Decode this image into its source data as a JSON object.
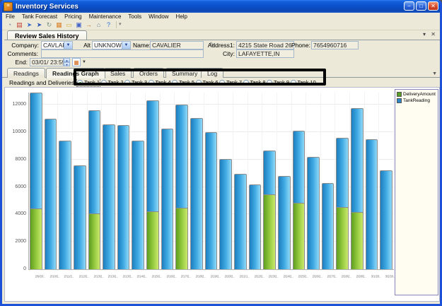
{
  "window": {
    "title": "Inventory Services",
    "controls": {
      "minimize": "−",
      "maximize": "□",
      "close": "✕"
    }
  },
  "menu": {
    "items": [
      "File",
      "Tank Forecast",
      "Pricing",
      "Maintenance",
      "Tools",
      "Window",
      "Help"
    ]
  },
  "toolbar": {
    "icons": [
      {
        "name": "gauge-icon",
        "glyph": "◔",
        "color": "#7d8da5"
      },
      {
        "name": "report-icon",
        "glyph": "▤",
        "color": "#c23a2e"
      },
      {
        "name": "edit-pointer-icon",
        "glyph": "➤",
        "color": "#3a6cd0"
      },
      {
        "name": "pointer-icon",
        "glyph": "➤",
        "color": "#2a54b0"
      },
      {
        "name": "refresh-icon",
        "glyph": "↻",
        "color": "#7a9183"
      },
      {
        "name": "table-icon",
        "glyph": "▦",
        "color": "#d9822b"
      },
      {
        "name": "folder-open-icon",
        "glyph": "▭",
        "color": "#d8b23c"
      },
      {
        "name": "save-icon",
        "glyph": "▣",
        "color": "#4462c8"
      },
      {
        "name": "export-icon",
        "glyph": "→",
        "color": "#c07020"
      },
      {
        "name": "exit-icon",
        "glyph": "⌂",
        "color": "#6e82a0"
      },
      {
        "name": "help-icon",
        "glyph": "?",
        "color": "#2a6ed8"
      }
    ],
    "overflow_glyph": "▾"
  },
  "review_panel": {
    "tab_label": "Review Sales History",
    "collapse_glyph": "▾",
    "close_glyph": "✕"
  },
  "form": {
    "company_label": "Company:",
    "company_value": "CAVLAF",
    "altid_label": "Alt ID:",
    "altid_value": "UNKNOWN",
    "name_label": "Name:",
    "name_value": "CAVALIER",
    "address_label": "Address1:",
    "address_value": "4215 State Road 26 E",
    "phone_label": "Phone:",
    "phone_value": "7654960716",
    "comments_label": "Comments:",
    "comments_value": "",
    "city_label": "City:",
    "city_value": "LAFAYETTE,IN",
    "end_label": "End:",
    "end_date": "03/01/",
    "end_time": "23:59",
    "combo_arrow": "▼",
    "spin_up": "▲",
    "spin_down": "▼",
    "calendar_glyph": "▦"
  },
  "tabs": {
    "labels": [
      "Readings",
      "Readings Graph",
      "Sales",
      "Orders",
      "Summary",
      "Log"
    ],
    "active": "Readings Graph"
  },
  "subheader": {
    "title": "Readings and Deliveries",
    "tanks": [
      "Tank 1",
      "Tank 2",
      "Tank 3",
      "Tank 4",
      "Tank 5",
      "Tank 6",
      "Tank 7",
      "Tank 8",
      "Tank 9",
      "Tank 10"
    ],
    "selected_tank": "Tank 1",
    "chevron_glyph": "▼"
  },
  "chart_data": {
    "type": "bar",
    "title": "Readings and Deliveries",
    "categories": [
      "2/9/20..",
      "2/10/2..",
      "2/11/2..",
      "2/12/2..",
      "2/13/2..",
      "2/13/2..",
      "2/13/2..",
      "2/14/2..",
      "2/15/2..",
      "2/16/2..",
      "2/17/2..",
      "2/18/2..",
      "2/19/2..",
      "2/20/2..",
      "2/21/1..",
      "2/22/2..",
      "2/23/2..",
      "2/24/2..",
      "2/25/2..",
      "2/26/2..",
      "2/27/2..",
      "2/28/2..",
      "2/28/2..",
      "3/1/20..",
      "3/2/20.."
    ],
    "series": [
      {
        "name": "TankReading",
        "color": "#2d85c5",
        "values": [
          12950,
          11000,
          9400,
          7600,
          11600,
          10550,
          10500,
          9400,
          12330,
          10250,
          12000,
          11050,
          10000,
          8050,
          6970,
          6200,
          8650,
          6800,
          10100,
          8170,
          6280,
          9580,
          11750,
          9500,
          7220
        ]
      },
      {
        "name": "DeliveryAmount",
        "color": "#5a9e28",
        "values": [
          4450,
          null,
          null,
          null,
          4080,
          null,
          null,
          null,
          4250,
          null,
          4470,
          null,
          null,
          null,
          null,
          null,
          5450,
          null,
          4870,
          null,
          null,
          4560,
          4180,
          null,
          null
        ]
      }
    ],
    "ylim": [
      0,
      13400
    ],
    "yticks": [
      0,
      2000,
      4000,
      6000,
      8000,
      10000,
      12000
    ],
    "grid": true,
    "legend_position": "right",
    "legend_items": [
      {
        "label": "DeliveryAmount",
        "color": "#5a9e28"
      },
      {
        "label": "TankReading",
        "color": "#2d85c5"
      }
    ]
  }
}
